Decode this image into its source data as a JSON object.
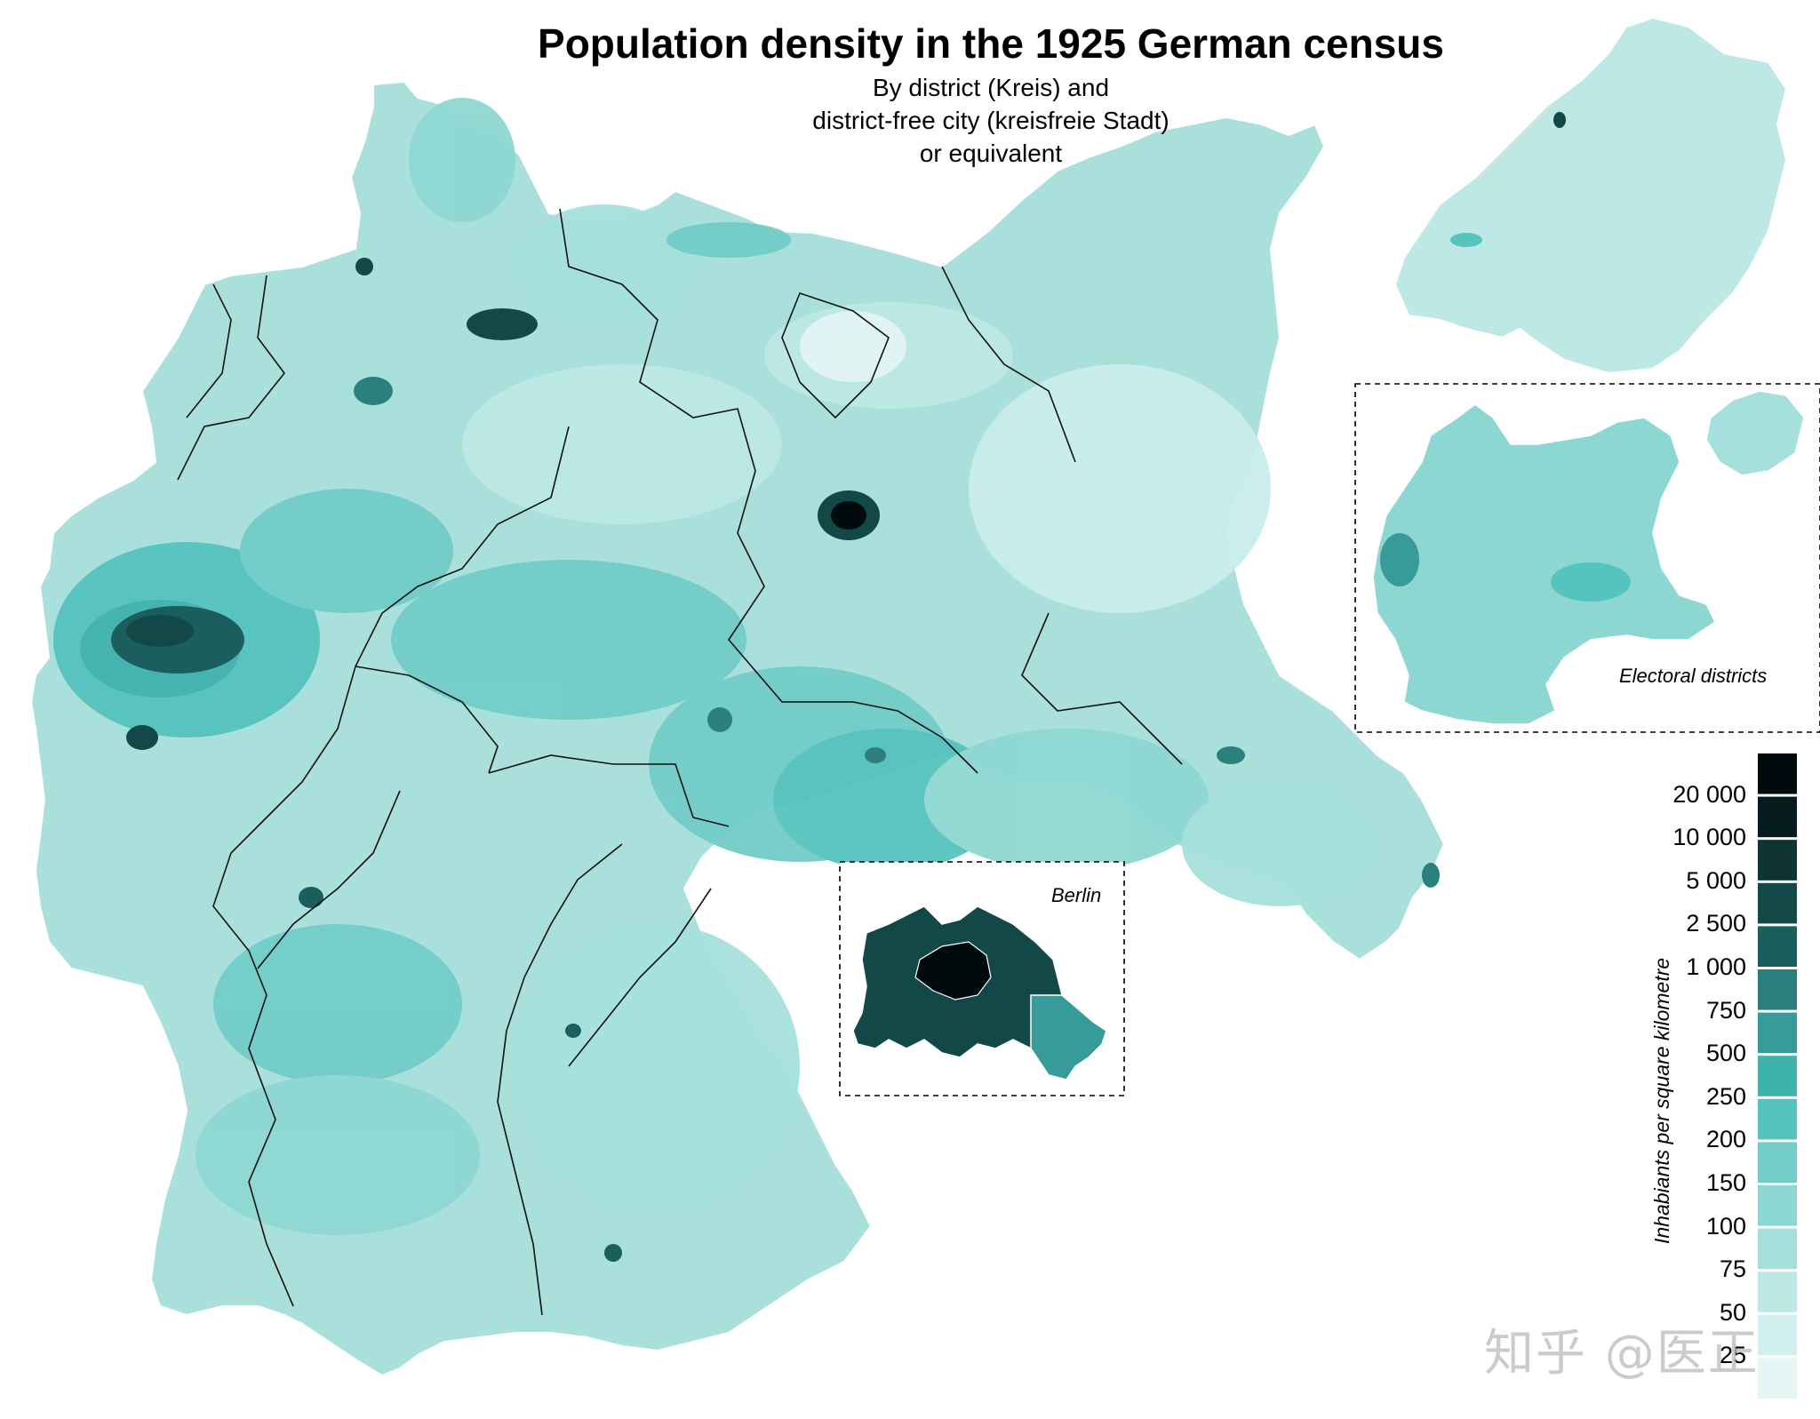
{
  "title": "Population density in the 1925 German census",
  "subtitle": [
    "By district (Kreis) and",
    "district-free city (kreisfreie Stadt)",
    "or equivalent"
  ],
  "insets": {
    "berlin_label": "Berlin",
    "electoral_label": "Electoral districts"
  },
  "legend": {
    "title": "Inhabiants per square kilometre",
    "breaks": [
      "20 000",
      "10 000",
      "5 000",
      "2 500",
      "1 000",
      "750",
      "500",
      "250",
      "200",
      "150",
      "100",
      "75",
      "50",
      "25"
    ],
    "colors": [
      "#020b0b",
      "#071d1d",
      "#0d3333",
      "#124848",
      "#1a5f5e",
      "#2b807e",
      "#379c99",
      "#40b2ae",
      "#55c3be",
      "#72ccc7",
      "#8dd7d2",
      "#a6e0dc",
      "#bde8e5",
      "#d2f0ee",
      "#e3f6f5"
    ]
  },
  "watermark": "知乎 @医正",
  "colors": {
    "water_outline": "#ffffff",
    "state_border": "#111111",
    "district_border": "#ffffff"
  }
}
